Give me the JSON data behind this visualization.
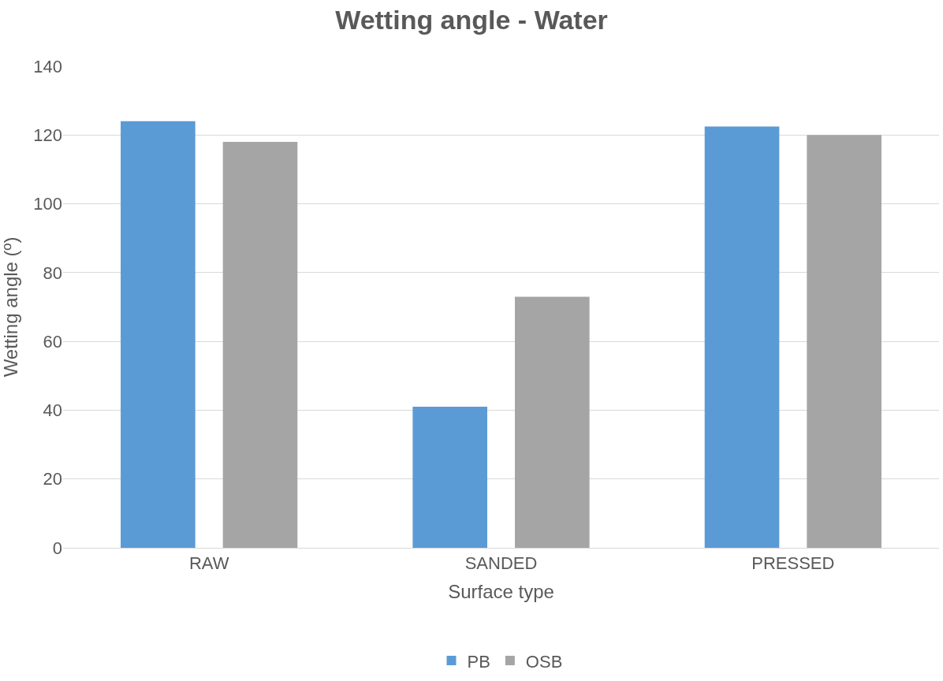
{
  "chart_data": {
    "type": "bar",
    "title": "Wetting angle - Water",
    "xlabel": "Surface type",
    "ylabel": "Wetting angle (º)",
    "categories": [
      "RAW",
      "SANDED",
      "PRESSED"
    ],
    "series": [
      {
        "name": "PB",
        "color": "#5b9bd5",
        "values": [
          124,
          41,
          122.5
        ]
      },
      {
        "name": "OSB",
        "color": "#a5a5a5",
        "values": [
          118,
          73,
          120
        ]
      }
    ],
    "ylim": [
      0,
      140
    ],
    "yticks": [
      0,
      20,
      40,
      60,
      80,
      100,
      120,
      140
    ],
    "grid": "y",
    "legend": "bottom"
  }
}
